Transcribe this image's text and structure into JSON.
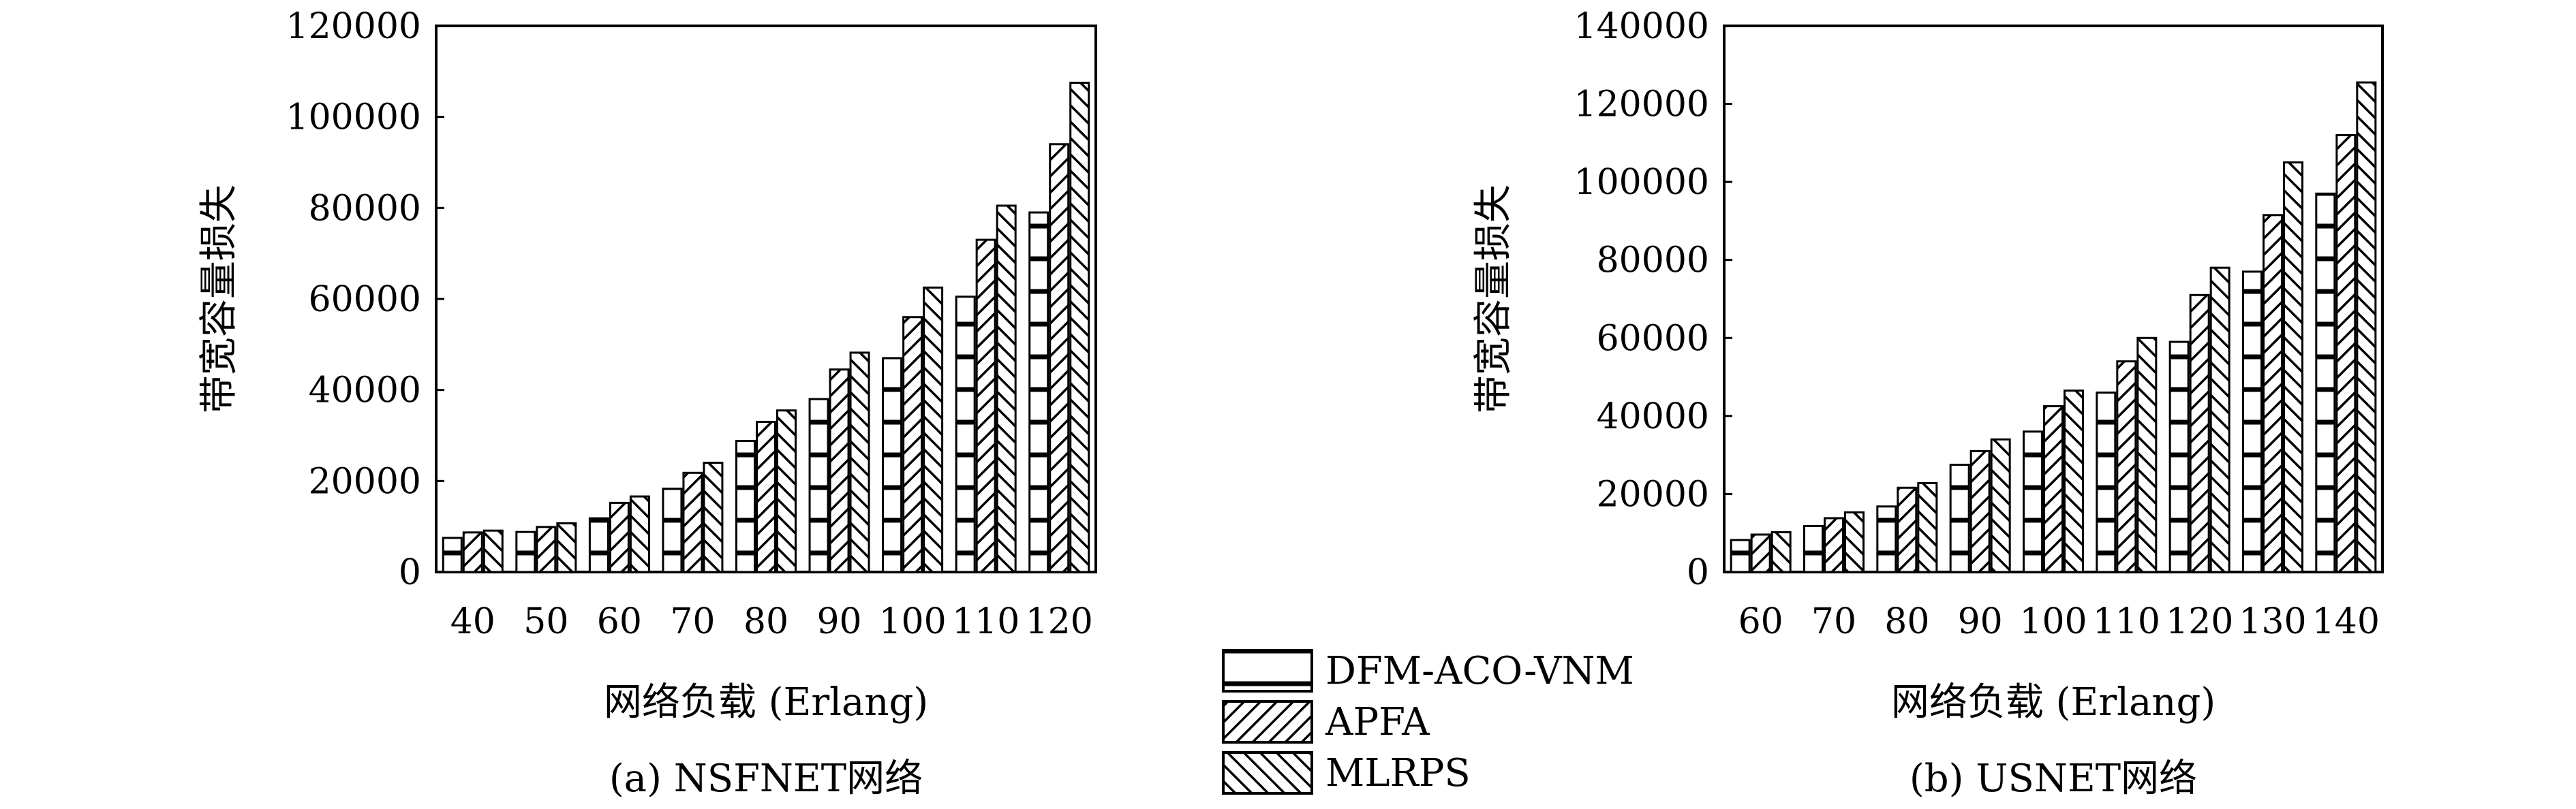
{
  "legend": {
    "items": [
      {
        "name": "DFM-ACO-VNM",
        "pattern": "hbars"
      },
      {
        "name": "APFA",
        "pattern": "diag"
      },
      {
        "name": "MLRPS",
        "pattern": "backdiag"
      }
    ]
  },
  "chart_data": [
    {
      "type": "bar",
      "caption": "(a) NSFNET网络",
      "xlabel": "网络负载 (Erlang)",
      "ylabel": "带宽容量损失",
      "ylim": [
        0,
        120000
      ],
      "yticks": [
        "0",
        "20000",
        "40000",
        "60000",
        "80000",
        "100000",
        "120000"
      ],
      "categories": [
        "40",
        "50",
        "60",
        "70",
        "80",
        "90",
        "100",
        "110",
        "120"
      ],
      "series": [
        {
          "name": "DFM-ACO-VNM",
          "values": [
            7500,
            8800,
            11800,
            18300,
            28800,
            38000,
            47000,
            60500,
            79000
          ]
        },
        {
          "name": "APFA",
          "values": [
            8700,
            9900,
            15200,
            21800,
            33000,
            44500,
            56000,
            73000,
            94000
          ]
        },
        {
          "name": "MLRPS",
          "values": [
            9100,
            10700,
            16600,
            24000,
            35500,
            48200,
            62500,
            80500,
            107500
          ]
        }
      ]
    },
    {
      "type": "bar",
      "caption": "(b) USNET网络",
      "xlabel": "网络负载 (Erlang)",
      "ylabel": "带宽容量损失",
      "ylim": [
        0,
        140000
      ],
      "yticks": [
        "0",
        "20000",
        "40000",
        "60000",
        "80000",
        "100000",
        "120000",
        "140000"
      ],
      "categories": [
        "60",
        "70",
        "80",
        "90",
        "100",
        "110",
        "120",
        "130",
        "140"
      ],
      "series": [
        {
          "name": "DFM-ACO-VNM",
          "values": [
            8200,
            11800,
            16800,
            27500,
            36000,
            46000,
            59000,
            77000,
            97000
          ]
        },
        {
          "name": "APFA",
          "values": [
            9600,
            13800,
            21600,
            31000,
            42500,
            54000,
            71000,
            91500,
            112000
          ]
        },
        {
          "name": "MLRPS",
          "values": [
            10200,
            15300,
            22800,
            34000,
            46500,
            60000,
            78000,
            105000,
            125500
          ]
        }
      ]
    }
  ]
}
